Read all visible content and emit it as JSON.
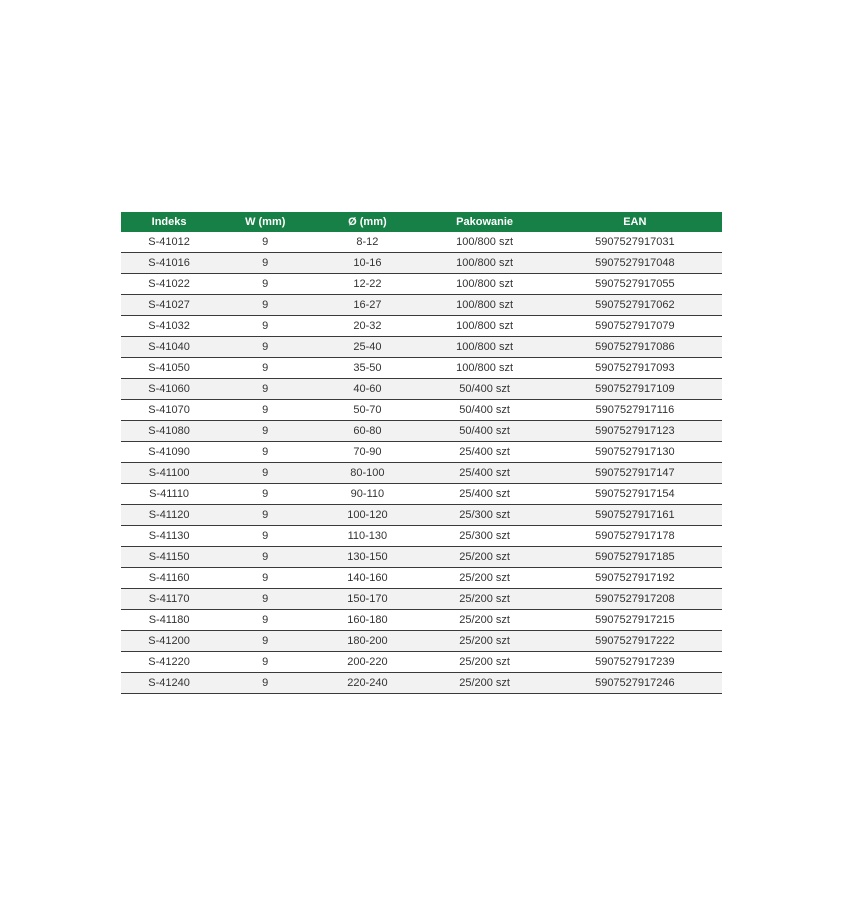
{
  "colors": {
    "header_bg": "#178047",
    "header_text": "#ffffff",
    "row_alt_bg": "#f2f2f2",
    "row_border": "#3a3a3a",
    "cell_text": "#333333"
  },
  "table": {
    "columns": [
      {
        "key": "indeks",
        "label": "Indeks"
      },
      {
        "key": "w_mm",
        "label": "W (mm)"
      },
      {
        "key": "diameter_mm",
        "label": "Ø (mm)"
      },
      {
        "key": "pakowanie",
        "label": "Pakowanie"
      },
      {
        "key": "ean",
        "label": "EAN"
      }
    ],
    "rows": [
      [
        "S-41012",
        "9",
        "8-12",
        "100/800 szt",
        "5907527917031"
      ],
      [
        "S-41016",
        "9",
        "10-16",
        "100/800 szt",
        "5907527917048"
      ],
      [
        "S-41022",
        "9",
        "12-22",
        "100/800 szt",
        "5907527917055"
      ],
      [
        "S-41027",
        "9",
        "16-27",
        "100/800 szt",
        "5907527917062"
      ],
      [
        "S-41032",
        "9",
        "20-32",
        "100/800 szt",
        "5907527917079"
      ],
      [
        "S-41040",
        "9",
        "25-40",
        "100/800 szt",
        "5907527917086"
      ],
      [
        "S-41050",
        "9",
        "35-50",
        "100/800 szt",
        "5907527917093"
      ],
      [
        "S-41060",
        "9",
        "40-60",
        "50/400 szt",
        "5907527917109"
      ],
      [
        "S-41070",
        "9",
        "50-70",
        "50/400 szt",
        "5907527917116"
      ],
      [
        "S-41080",
        "9",
        "60-80",
        "50/400 szt",
        "5907527917123"
      ],
      [
        "S-41090",
        "9",
        "70-90",
        "25/400 szt",
        "5907527917130"
      ],
      [
        "S-41100",
        "9",
        "80-100",
        "25/400 szt",
        "5907527917147"
      ],
      [
        "S-41110",
        "9",
        "90-110",
        "25/400 szt",
        "5907527917154"
      ],
      [
        "S-41120",
        "9",
        "100-120",
        "25/300 szt",
        "5907527917161"
      ],
      [
        "S-41130",
        "9",
        "110-130",
        "25/300 szt",
        "5907527917178"
      ],
      [
        "S-41150",
        "9",
        "130-150",
        "25/200 szt",
        "5907527917185"
      ],
      [
        "S-41160",
        "9",
        "140-160",
        "25/200 szt",
        "5907527917192"
      ],
      [
        "S-41170",
        "9",
        "150-170",
        "25/200 szt",
        "5907527917208"
      ],
      [
        "S-41180",
        "9",
        "160-180",
        "25/200 szt",
        "5907527917215"
      ],
      [
        "S-41200",
        "9",
        "180-200",
        "25/200 szt",
        "5907527917222"
      ],
      [
        "S-41220",
        "9",
        "200-220",
        "25/200 szt",
        "5907527917239"
      ],
      [
        "S-41240",
        "9",
        "220-240",
        "25/200 szt",
        "5907527917246"
      ]
    ]
  }
}
